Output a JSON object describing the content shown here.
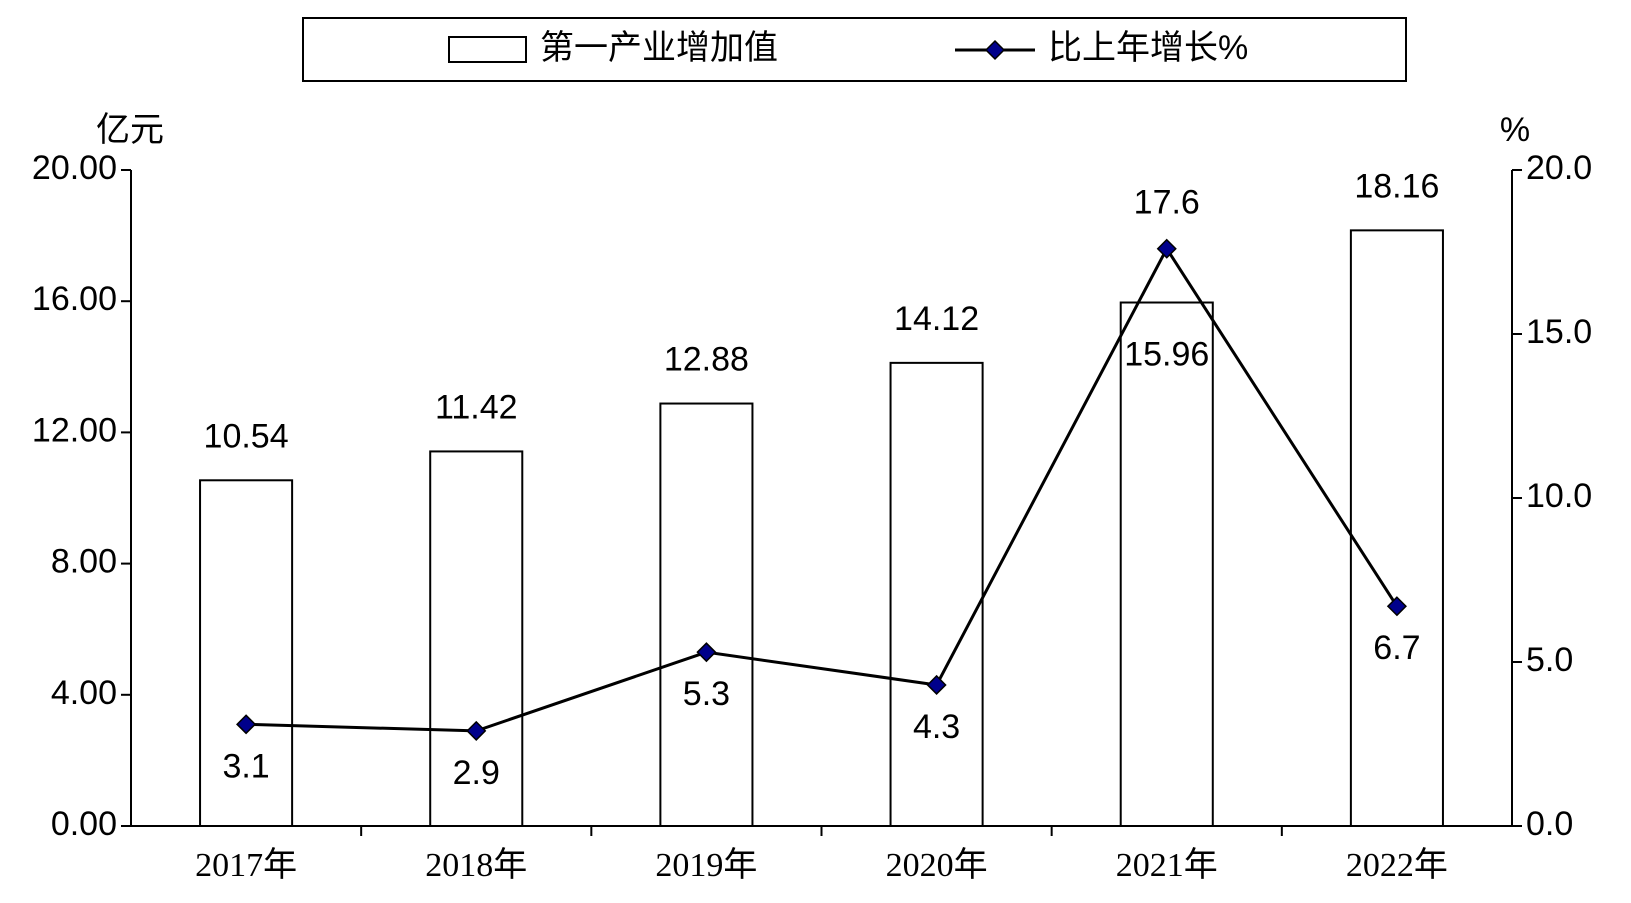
{
  "chart_data": {
    "type": "bar-line",
    "y_label": "亿元",
    "y2_label": "%",
    "categories": [
      "2017年",
      "2018年",
      "2019年",
      "2020年",
      "2021年",
      "2022年"
    ],
    "series": [
      {
        "name": "第一产业增加值",
        "type": "bar",
        "color": "#ffffff",
        "values": [
          10.54,
          11.42,
          12.88,
          14.12,
          15.96,
          18.16
        ]
      },
      {
        "name": "比上年增长%",
        "type": "line",
        "axis": "y2",
        "color": "#000000",
        "marker_color": "#00008b",
        "values": [
          3.1,
          2.9,
          5.3,
          4.3,
          17.6,
          6.7
        ]
      }
    ],
    "ylim": [
      0,
      20
    ],
    "yticks": [
      {
        "value": 0,
        "label": "0.00"
      },
      {
        "value": 4,
        "label": "4.00"
      },
      {
        "value": 8,
        "label": "8.00"
      },
      {
        "value": 12,
        "label": "12.00"
      },
      {
        "value": 16,
        "label": "16.00"
      },
      {
        "value": 20,
        "label": "20.00"
      }
    ],
    "y2lim": [
      0,
      20
    ],
    "y2ticks": [
      {
        "value": 0,
        "label": "0.0"
      },
      {
        "value": 5,
        "label": "5.0"
      },
      {
        "value": 10,
        "label": "10.0"
      },
      {
        "value": 15,
        "label": "15.0"
      },
      {
        "value": 20,
        "label": "20.0"
      }
    ],
    "legend": "top",
    "grid": false
  }
}
